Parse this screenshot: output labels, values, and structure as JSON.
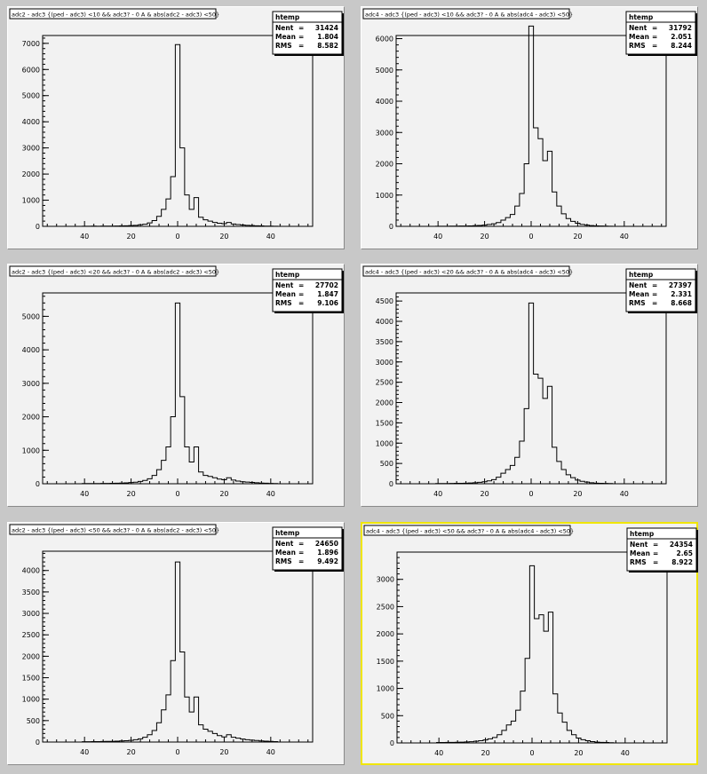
{
  "selected_pad": 5,
  "chart_data": [
    {
      "type": "bar",
      "title": "adc2 - adc3 {(ped - adc3) <10 && adc3? - 0 A & abs(adc2 - adc3) <50}",
      "xlim": [
        -58,
        58
      ],
      "ylim": [
        0,
        7300
      ],
      "xticks": [
        -40,
        -20,
        0,
        20,
        40
      ],
      "xtick_labels": [
        "40",
        "20",
        "0",
        "20",
        "40"
      ],
      "yticks": [
        1000,
        2000,
        3000,
        4000,
        5000,
        6000,
        7000
      ],
      "grid": false,
      "stats": {
        "name": "htemp",
        "rows": [
          [
            "Nent",
            "31424"
          ],
          [
            "Mean",
            "1.804"
          ],
          [
            "RMS",
            "8.582"
          ]
        ]
      },
      "bin_width": 2,
      "bins": [
        [
          -40,
          5
        ],
        [
          -38,
          5
        ],
        [
          -36,
          8
        ],
        [
          -34,
          5
        ],
        [
          -32,
          8
        ],
        [
          -30,
          10
        ],
        [
          -28,
          10
        ],
        [
          -26,
          12
        ],
        [
          -24,
          15
        ],
        [
          -22,
          20
        ],
        [
          -20,
          30
        ],
        [
          -18,
          40
        ],
        [
          -16,
          60
        ],
        [
          -14,
          80
        ],
        [
          -12,
          130
        ],
        [
          -10,
          220
        ],
        [
          -8,
          380
        ],
        [
          -6,
          650
        ],
        [
          -4,
          1050
        ],
        [
          -2,
          1900
        ],
        [
          0,
          6950
        ],
        [
          2,
          3000
        ],
        [
          4,
          1200
        ],
        [
          6,
          650
        ],
        [
          8,
          1100
        ],
        [
          10,
          350
        ],
        [
          12,
          250
        ],
        [
          14,
          200
        ],
        [
          16,
          150
        ],
        [
          18,
          120
        ],
        [
          20,
          100
        ],
        [
          22,
          150
        ],
        [
          24,
          90
        ],
        [
          26,
          70
        ],
        [
          28,
          50
        ],
        [
          30,
          40
        ],
        [
          32,
          30
        ],
        [
          34,
          20
        ],
        [
          36,
          15
        ],
        [
          38,
          10
        ],
        [
          40,
          8
        ],
        [
          42,
          5
        ]
      ]
    },
    {
      "type": "bar",
      "title": "adc4 - adc3 {(ped - adc3) <10 && adc3? - 0 A & abs(adc4 - adc3) <50}",
      "xlim": [
        -58,
        58
      ],
      "ylim": [
        0,
        6100
      ],
      "xticks": [
        -40,
        -20,
        0,
        20,
        40
      ],
      "xtick_labels": [
        "40",
        "20",
        "0",
        "20",
        "40"
      ],
      "yticks": [
        1000,
        2000,
        3000,
        4000,
        5000,
        6000
      ],
      "grid": false,
      "stats": {
        "name": "htemp",
        "rows": [
          [
            "Nent",
            "31792"
          ],
          [
            "Mean",
            "2.051"
          ],
          [
            "RMS",
            "8.244"
          ]
        ]
      },
      "bin_width": 2,
      "bins": [
        [
          -40,
          5
        ],
        [
          -38,
          5
        ],
        [
          -36,
          5
        ],
        [
          -34,
          8
        ],
        [
          -32,
          8
        ],
        [
          -30,
          10
        ],
        [
          -28,
          10
        ],
        [
          -26,
          15
        ],
        [
          -24,
          20
        ],
        [
          -22,
          30
        ],
        [
          -20,
          40
        ],
        [
          -18,
          60
        ],
        [
          -16,
          80
        ],
        [
          -14,
          120
        ],
        [
          -12,
          200
        ],
        [
          -10,
          280
        ],
        [
          -8,
          380
        ],
        [
          -6,
          650
        ],
        [
          -4,
          1050
        ],
        [
          -2,
          2000
        ],
        [
          0,
          6400
        ],
        [
          2,
          3150
        ],
        [
          4,
          2800
        ],
        [
          6,
          2100
        ],
        [
          8,
          2400
        ],
        [
          10,
          1100
        ],
        [
          12,
          650
        ],
        [
          14,
          400
        ],
        [
          16,
          250
        ],
        [
          18,
          160
        ],
        [
          20,
          100
        ],
        [
          22,
          60
        ],
        [
          24,
          40
        ],
        [
          26,
          25
        ],
        [
          28,
          15
        ],
        [
          30,
          10
        ],
        [
          32,
          8
        ],
        [
          34,
          5
        ]
      ]
    },
    {
      "type": "bar",
      "title": "adc2 - adc3 {(ped - adc3) <20 && adc3? - 0 A & abs(adc2 - adc3) <50}",
      "xlim": [
        -58,
        58
      ],
      "ylim": [
        0,
        5700
      ],
      "xticks": [
        -40,
        -20,
        0,
        20,
        40
      ],
      "xtick_labels": [
        "40",
        "20",
        "0",
        "20",
        "40"
      ],
      "yticks": [
        1000,
        2000,
        3000,
        4000,
        5000
      ],
      "grid": false,
      "stats": {
        "name": "htemp",
        "rows": [
          [
            "Nent",
            "27702"
          ],
          [
            "Mean",
            "1.847"
          ],
          [
            "RMS",
            "9.106"
          ]
        ]
      },
      "bin_width": 2,
      "bins": [
        [
          -40,
          5
        ],
        [
          -38,
          5
        ],
        [
          -36,
          8
        ],
        [
          -34,
          8
        ],
        [
          -32,
          10
        ],
        [
          -30,
          10
        ],
        [
          -28,
          12
        ],
        [
          -26,
          15
        ],
        [
          -24,
          20
        ],
        [
          -22,
          25
        ],
        [
          -20,
          35
        ],
        [
          -18,
          45
        ],
        [
          -16,
          70
        ],
        [
          -14,
          100
        ],
        [
          -12,
          150
        ],
        [
          -10,
          250
        ],
        [
          -8,
          420
        ],
        [
          -6,
          700
        ],
        [
          -4,
          1100
        ],
        [
          -2,
          2000
        ],
        [
          0,
          5400
        ],
        [
          2,
          2600
        ],
        [
          4,
          1100
        ],
        [
          6,
          650
        ],
        [
          8,
          1100
        ],
        [
          10,
          350
        ],
        [
          12,
          250
        ],
        [
          14,
          220
        ],
        [
          16,
          180
        ],
        [
          18,
          140
        ],
        [
          20,
          120
        ],
        [
          22,
          180
        ],
        [
          24,
          110
        ],
        [
          26,
          80
        ],
        [
          28,
          60
        ],
        [
          30,
          50
        ],
        [
          32,
          40
        ],
        [
          34,
          30
        ],
        [
          36,
          20
        ],
        [
          38,
          15
        ],
        [
          40,
          10
        ],
        [
          42,
          8
        ]
      ]
    },
    {
      "type": "bar",
      "title": "adc4 - adc3 {(ped - adc3) <20 && adc3? - 0 A & abs(adc4 - adc3) <50}",
      "xlim": [
        -58,
        58
      ],
      "ylim": [
        0,
        4700
      ],
      "xticks": [
        -40,
        -20,
        0,
        20,
        40
      ],
      "xtick_labels": [
        "40",
        "20",
        "0",
        "20",
        "40"
      ],
      "yticks": [
        500,
        1000,
        1500,
        2000,
        2500,
        3000,
        3500,
        4000,
        4500
      ],
      "grid": false,
      "stats": {
        "name": "htemp",
        "rows": [
          [
            "Nent",
            "27397"
          ],
          [
            "Mean",
            "2.331"
          ],
          [
            "RMS",
            "8.668"
          ]
        ]
      },
      "bin_width": 2,
      "bins": [
        [
          -40,
          5
        ],
        [
          -38,
          5
        ],
        [
          -36,
          5
        ],
        [
          -34,
          8
        ],
        [
          -32,
          10
        ],
        [
          -30,
          12
        ],
        [
          -28,
          15
        ],
        [
          -26,
          20
        ],
        [
          -24,
          25
        ],
        [
          -22,
          35
        ],
        [
          -20,
          50
        ],
        [
          -18,
          70
        ],
        [
          -16,
          100
        ],
        [
          -14,
          160
        ],
        [
          -12,
          260
        ],
        [
          -10,
          350
        ],
        [
          -8,
          450
        ],
        [
          -6,
          650
        ],
        [
          -4,
          1050
        ],
        [
          -2,
          1850
        ],
        [
          0,
          4450
        ],
        [
          2,
          2700
        ],
        [
          4,
          2600
        ],
        [
          6,
          2100
        ],
        [
          8,
          2400
        ],
        [
          10,
          900
        ],
        [
          12,
          550
        ],
        [
          14,
          350
        ],
        [
          16,
          220
        ],
        [
          18,
          150
        ],
        [
          20,
          90
        ],
        [
          22,
          60
        ],
        [
          24,
          40
        ],
        [
          26,
          25
        ],
        [
          28,
          15
        ],
        [
          30,
          10
        ],
        [
          32,
          8
        ],
        [
          34,
          5
        ]
      ]
    },
    {
      "type": "bar",
      "title": "adc2 - adc3 {(ped - adc3) <50 && adc3? - 0 A & abs(adc2 - adc3) <50}",
      "xlim": [
        -58,
        58
      ],
      "ylim": [
        0,
        4450
      ],
      "xticks": [
        -40,
        -20,
        0,
        20,
        40
      ],
      "xtick_labels": [
        "40",
        "20",
        "0",
        "20",
        "40"
      ],
      "yticks": [
        500,
        1000,
        1500,
        2000,
        2500,
        3000,
        3500,
        4000
      ],
      "grid": false,
      "stats": {
        "name": "htemp",
        "rows": [
          [
            "Nent",
            "24650"
          ],
          [
            "Mean",
            "1.896"
          ],
          [
            "RMS",
            "9.492"
          ]
        ]
      },
      "bin_width": 2,
      "bins": [
        [
          -40,
          8
        ],
        [
          -38,
          8
        ],
        [
          -36,
          10
        ],
        [
          -34,
          10
        ],
        [
          -32,
          12
        ],
        [
          -30,
          15
        ],
        [
          -28,
          15
        ],
        [
          -26,
          20
        ],
        [
          -24,
          25
        ],
        [
          -22,
          30
        ],
        [
          -20,
          40
        ],
        [
          -18,
          55
        ],
        [
          -16,
          75
        ],
        [
          -14,
          110
        ],
        [
          -12,
          170
        ],
        [
          -10,
          270
        ],
        [
          -8,
          450
        ],
        [
          -6,
          750
        ],
        [
          -4,
          1100
        ],
        [
          -2,
          1900
        ],
        [
          0,
          4200
        ],
        [
          2,
          2100
        ],
        [
          4,
          1050
        ],
        [
          6,
          700
        ],
        [
          8,
          1050
        ],
        [
          10,
          400
        ],
        [
          12,
          300
        ],
        [
          14,
          250
        ],
        [
          16,
          200
        ],
        [
          18,
          150
        ],
        [
          20,
          120
        ],
        [
          22,
          170
        ],
        [
          24,
          110
        ],
        [
          26,
          90
        ],
        [
          28,
          70
        ],
        [
          30,
          55
        ],
        [
          32,
          45
        ],
        [
          34,
          35
        ],
        [
          36,
          25
        ],
        [
          38,
          20
        ],
        [
          40,
          15
        ],
        [
          42,
          10
        ]
      ]
    },
    {
      "type": "bar",
      "title": "adc4 - adc3 {(ped - adc3) <50 && adc3? - 0 A & abs(adc4 - adc3) <50}",
      "xlim": [
        -58,
        58
      ],
      "ylim": [
        0,
        3500
      ],
      "xticks": [
        -40,
        -20,
        0,
        20,
        40
      ],
      "xtick_labels": [
        "40",
        "20",
        "0",
        "20",
        "40"
      ],
      "yticks": [
        500,
        1000,
        1500,
        2000,
        2500,
        3000
      ],
      "grid": false,
      "stats": {
        "name": "htemp",
        "rows": [
          [
            "Nent",
            "24354"
          ],
          [
            "Mean",
            "2.65"
          ],
          [
            "RMS",
            "8.922"
          ]
        ]
      },
      "bin_width": 2,
      "bins": [
        [
          -40,
          8
        ],
        [
          -38,
          8
        ],
        [
          -36,
          10
        ],
        [
          -34,
          10
        ],
        [
          -32,
          12
        ],
        [
          -30,
          15
        ],
        [
          -28,
          18
        ],
        [
          -26,
          22
        ],
        [
          -24,
          30
        ],
        [
          -22,
          40
        ],
        [
          -20,
          55
        ],
        [
          -18,
          75
        ],
        [
          -16,
          100
        ],
        [
          -14,
          150
        ],
        [
          -12,
          230
        ],
        [
          -10,
          330
        ],
        [
          -8,
          400
        ],
        [
          -6,
          600
        ],
        [
          -4,
          950
        ],
        [
          -2,
          1550
        ],
        [
          0,
          3250
        ],
        [
          2,
          2280
        ],
        [
          4,
          2350
        ],
        [
          6,
          2050
        ],
        [
          8,
          2400
        ],
        [
          10,
          900
        ],
        [
          12,
          550
        ],
        [
          14,
          380
        ],
        [
          16,
          230
        ],
        [
          18,
          150
        ],
        [
          20,
          90
        ],
        [
          22,
          60
        ],
        [
          24,
          40
        ],
        [
          26,
          25
        ],
        [
          28,
          15
        ],
        [
          30,
          10
        ],
        [
          32,
          8
        ],
        [
          34,
          5
        ]
      ]
    }
  ]
}
